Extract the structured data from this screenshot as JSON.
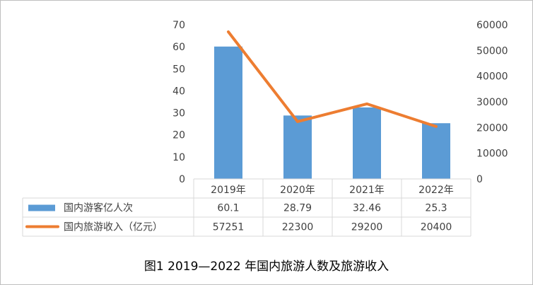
{
  "chart_data": {
    "type": "bar",
    "title": "",
    "caption": "图1 2019—2022 年国内旅游人数及旅游收入",
    "categories": [
      "2019年",
      "2020年",
      "2021年",
      "2022年"
    ],
    "left_axis": {
      "min": 0,
      "max": 70,
      "step": 10,
      "ticks": [
        "0",
        "10",
        "20",
        "30",
        "40",
        "50",
        "60",
        "70"
      ]
    },
    "right_axis": {
      "min": 0,
      "max": 60000,
      "step": 10000,
      "ticks": [
        "0",
        "10000",
        "20000",
        "30000",
        "40000",
        "50000",
        "60000"
      ]
    },
    "series": [
      {
        "name": "国内游客亿人次",
        "type": "bar",
        "axis": "left",
        "color": "#5b9bd5",
        "values": [
          60.1,
          28.79,
          32.46,
          25.3
        ],
        "labels": [
          "60.1",
          "28.79",
          "32.46",
          "25.3"
        ]
      },
      {
        "name": "国内旅游收入（亿元）",
        "type": "line",
        "axis": "right",
        "color": "#ed7d31",
        "values": [
          57251,
          22300,
          29200,
          20400
        ],
        "labels": [
          "57251",
          "22300",
          "29200",
          "20400"
        ]
      }
    ],
    "grid": false,
    "data_table": true
  }
}
